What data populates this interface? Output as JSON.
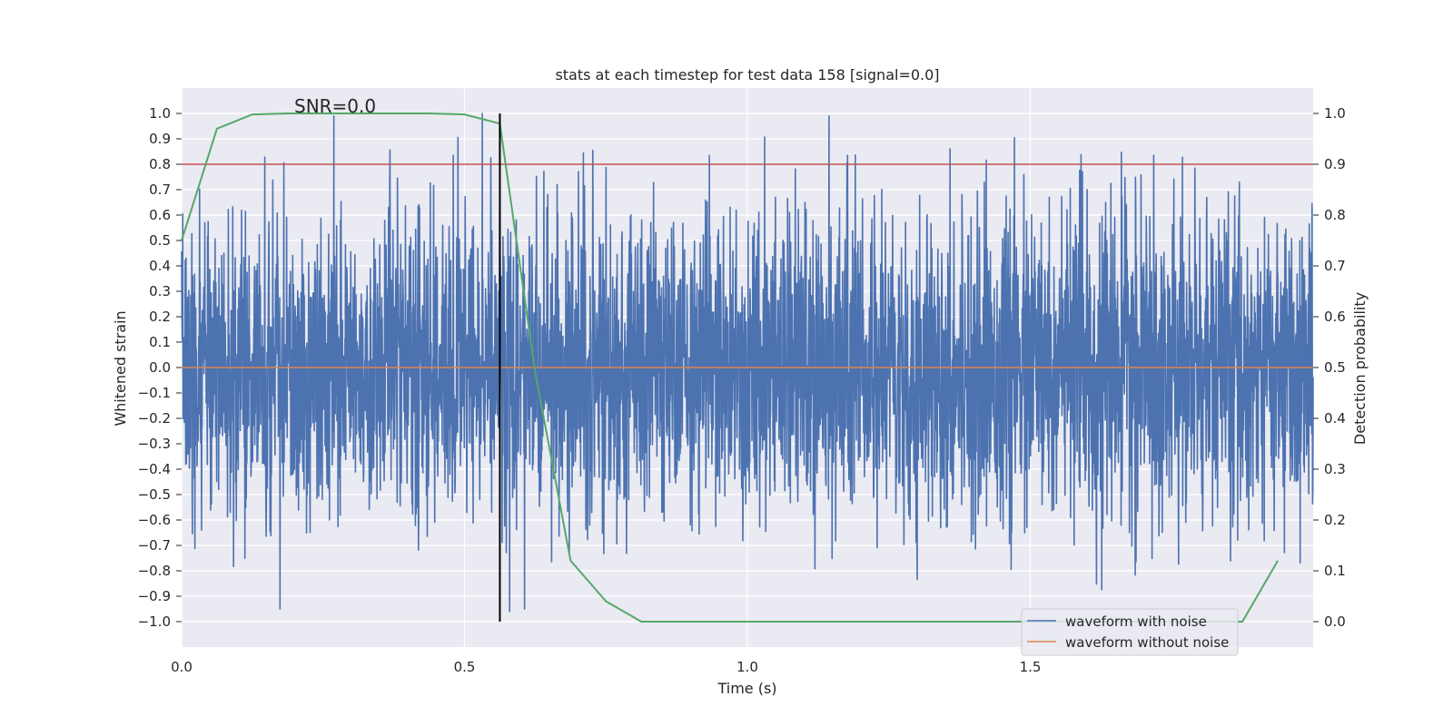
{
  "chart_data": {
    "type": "line",
    "title": "stats at each timestep for test data 158 [signal=0.0]",
    "xlabel": "Time (s)",
    "ylabel_left": "Whitened strain",
    "ylabel_right": "Detection probability",
    "annotation": "SNR=0.0",
    "xlim": [
      0.0,
      2.0
    ],
    "ylim_left": [
      -1.1,
      1.1
    ],
    "ylim_right": [
      -0.05,
      1.05
    ],
    "x_ticks": [
      "0.0",
      "0.5",
      "1.0",
      "1.5"
    ],
    "x_tick_values": [
      0.0,
      0.5,
      1.0,
      1.5
    ],
    "y_left_ticks": [
      "1.0",
      "0.9",
      "0.8",
      "0.7",
      "0.6",
      "0.5",
      "0.4",
      "0.3",
      "0.2",
      "0.1",
      "0.0",
      "−0.1",
      "−0.2",
      "−0.3",
      "−0.4",
      "−0.5",
      "−0.6",
      "−0.7",
      "−0.8",
      "−0.9",
      "−1.0"
    ],
    "y_left_tick_values": [
      1.0,
      0.9,
      0.8,
      0.7,
      0.6,
      0.5,
      0.4,
      0.3,
      0.2,
      0.1,
      0.0,
      -0.1,
      -0.2,
      -0.3,
      -0.4,
      -0.5,
      -0.6,
      -0.7,
      -0.8,
      -0.9,
      -1.0
    ],
    "y_right_ticks": [
      "1.0",
      "0.9",
      "0.8",
      "0.7",
      "0.6",
      "0.5",
      "0.4",
      "0.3",
      "0.2",
      "0.1",
      "0.0"
    ],
    "y_right_tick_values": [
      1.0,
      0.9,
      0.8,
      0.7,
      0.6,
      0.5,
      0.4,
      0.3,
      0.2,
      0.1,
      0.0
    ],
    "threshold": 0.9,
    "marker_time": 0.5625,
    "detection_probability": {
      "x": [
        0.0,
        0.0625,
        0.125,
        0.1875,
        0.25,
        0.3125,
        0.375,
        0.4375,
        0.5,
        0.5625,
        0.625,
        0.6875,
        0.75,
        0.8125,
        0.875,
        0.9375,
        1.0,
        1.0625,
        1.125,
        1.1875,
        1.25,
        1.3125,
        1.375,
        1.4375,
        1.5,
        1.5625,
        1.625,
        1.6875,
        1.75,
        1.8125,
        1.875,
        1.9375
      ],
      "y": [
        0.75,
        0.97,
        0.998,
        1.0,
        1.0,
        1.0,
        1.0,
        1.0,
        0.998,
        0.98,
        0.49,
        0.12,
        0.04,
        0.0,
        0.0,
        0.0,
        0.0,
        0.0,
        0.0,
        0.0,
        0.0,
        0.0,
        0.0,
        0.0,
        0.0,
        0.0,
        0.0,
        0.0,
        0.0,
        0.0,
        0.0,
        0.12
      ]
    },
    "noise_waveform": {
      "sample_rate_hz": 2048,
      "duration_s": 2.0,
      "distribution": "white noise, std ≈ 0.3, range −0.96 … 1.0"
    },
    "series": [
      {
        "name": "waveform with noise",
        "color": "#4c72b0"
      },
      {
        "name": "waveform without noise",
        "color": "#dd8452"
      },
      {
        "name": "detection probability",
        "color": "#55a868"
      },
      {
        "name": "threshold",
        "color": "#c44e52"
      },
      {
        "name": "marker",
        "color": "#000000"
      }
    ],
    "legend_position": "lower right"
  }
}
